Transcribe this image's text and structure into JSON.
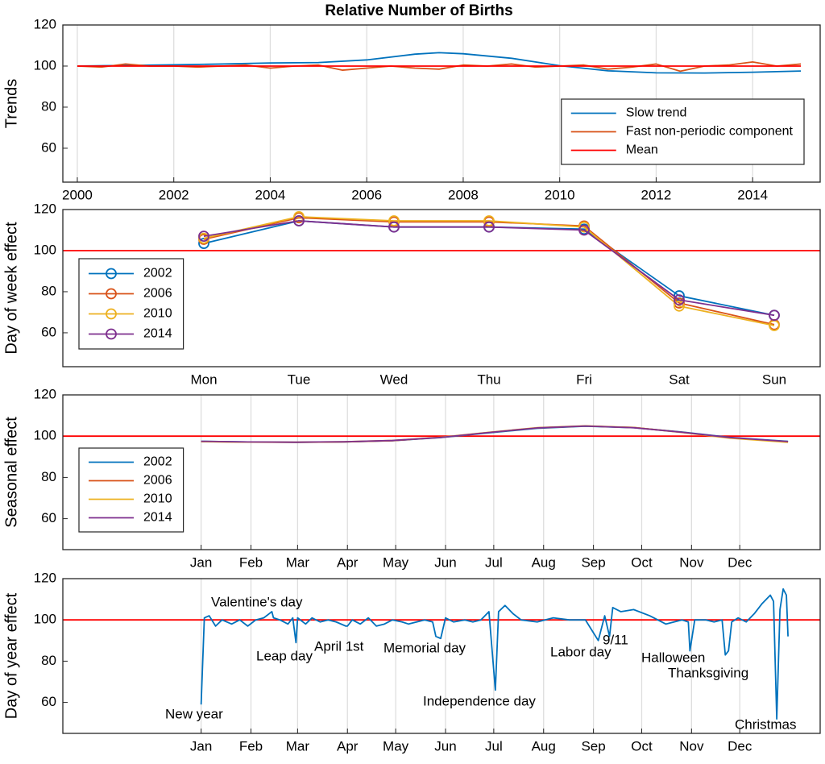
{
  "chart_data": [
    {
      "type": "line",
      "title": "Relative Number of Births",
      "ylabel": "Trends",
      "xlim": [
        1999.7,
        2015.4
      ],
      "ylim": [
        43.5,
        120
      ],
      "xticks": [
        2000,
        2002,
        2004,
        2006,
        2008,
        2010,
        2012,
        2014
      ],
      "yticks": [
        60,
        80,
        100,
        120
      ],
      "grid": true,
      "legend": "lower right",
      "series": [
        {
          "name": "Slow trend",
          "color": "#0072bd",
          "x": [
            2000,
            2001,
            2002,
            2003,
            2004,
            2005,
            2006,
            2007,
            2007.5,
            2008,
            2009,
            2010,
            2011,
            2012,
            2013,
            2014,
            2015
          ],
          "values": [
            100,
            100.3,
            100.6,
            101,
            101.5,
            101.7,
            103,
            105.8,
            106.5,
            106,
            103.8,
            100.2,
            97.7,
            96.7,
            96.6,
            97,
            97.6
          ]
        },
        {
          "name": "Fast non-periodic component",
          "color": "#d95319",
          "x": [
            2000,
            2000.5,
            2001,
            2001.5,
            2002,
            2002.5,
            2003,
            2003.5,
            2004,
            2004.5,
            2005,
            2005.5,
            2006,
            2006.5,
            2007,
            2007.5,
            2008,
            2008.5,
            2009,
            2009.5,
            2010,
            2010.5,
            2011,
            2011.5,
            2012,
            2012.5,
            2013,
            2013.5,
            2014,
            2014.5,
            2015
          ],
          "values": [
            100,
            99.5,
            101,
            100,
            100,
            99.5,
            100,
            100.5,
            99,
            100,
            100.5,
            98,
            99,
            100,
            99,
            98.5,
            100.5,
            100,
            101,
            99.5,
            100,
            100.5,
            98.5,
            99.5,
            101,
            97.5,
            100,
            100.5,
            102,
            100,
            101
          ]
        },
        {
          "name": "Mean",
          "color": "#ff0000",
          "x": [
            2000,
            2015
          ],
          "values": [
            100,
            100
          ]
        }
      ]
    },
    {
      "type": "line",
      "ylabel": "Day of week effect",
      "categories": [
        "Mon",
        "Tue",
        "Wed",
        "Thu",
        "Fri",
        "Sat",
        "Sun"
      ],
      "ylim": [
        43.5,
        120
      ],
      "yticks": [
        60,
        80,
        100,
        120
      ],
      "grid": false,
      "legend": "lower left",
      "reference_line": 100,
      "reference_color": "#ff0000",
      "markers": true,
      "series": [
        {
          "name": "2002",
          "color": "#0072bd",
          "values": [
            103.5,
            114.5,
            111.5,
            111.5,
            110.5,
            78,
            68.5
          ]
        },
        {
          "name": "2006",
          "color": "#d95319",
          "values": [
            105.5,
            116,
            114,
            114,
            112,
            74.5,
            64
          ]
        },
        {
          "name": "2010",
          "color": "#edb120",
          "values": [
            106,
            116.5,
            114.5,
            114.5,
            111.5,
            73,
            63.5
          ]
        },
        {
          "name": "2014",
          "color": "#7e2f8e",
          "values": [
            107,
            114.5,
            111.5,
            111.5,
            110,
            76,
            68.5
          ]
        }
      ]
    },
    {
      "type": "line",
      "ylabel": "Seasonal effect",
      "xlim": [
        -85,
        386
      ],
      "ylim": [
        45,
        120
      ],
      "xticks": [
        {
          "value": 1,
          "label": "Jan"
        },
        {
          "value": 32,
          "label": "Feb"
        },
        {
          "value": 61,
          "label": "Mar"
        },
        {
          "value": 92,
          "label": "Apr"
        },
        {
          "value": 122,
          "label": "May"
        },
        {
          "value": 153,
          "label": "Jun"
        },
        {
          "value": 183,
          "label": "Jul"
        },
        {
          "value": 214,
          "label": "Aug"
        },
        {
          "value": 245,
          "label": "Sep"
        },
        {
          "value": 275,
          "label": "Oct"
        },
        {
          "value": 306,
          "label": "Nov"
        },
        {
          "value": 336,
          "label": "Dec"
        }
      ],
      "yticks": [
        60,
        80,
        100,
        120
      ],
      "grid": true,
      "legend": "lower left",
      "reference_line": 100,
      "reference_color": "#ff0000",
      "x": [
        1,
        30,
        60,
        90,
        120,
        150,
        180,
        210,
        240,
        270,
        300,
        330,
        366
      ],
      "series": [
        {
          "name": "2002",
          "color": "#0072bd",
          "values": [
            97.5,
            97.2,
            97,
            97.2,
            97.8,
            99.3,
            101.6,
            103.8,
            104.8,
            104.1,
            102,
            99.4,
            97.5
          ]
        },
        {
          "name": "2006",
          "color": "#d95319",
          "values": [
            97.4,
            97.1,
            97,
            97.2,
            97.8,
            99.4,
            101.8,
            104,
            104.9,
            104.2,
            101.9,
            99.2,
            97.2
          ]
        },
        {
          "name": "2010",
          "color": "#edb120",
          "values": [
            97.3,
            97.1,
            97.1,
            97.3,
            97.9,
            99.5,
            101.9,
            104.1,
            105,
            104.2,
            101.8,
            99,
            97
          ]
        },
        {
          "name": "2014",
          "color": "#7e2f8e",
          "values": [
            97.5,
            97.2,
            97.1,
            97.3,
            97.9,
            99.4,
            101.8,
            104,
            104.9,
            104.1,
            101.9,
            99.3,
            97.4
          ]
        }
      ]
    },
    {
      "type": "line",
      "ylabel": "Day of year effect",
      "xlim": [
        -85,
        386
      ],
      "ylim": [
        45,
        120
      ],
      "xticks": [
        {
          "value": 1,
          "label": "Jan"
        },
        {
          "value": 32,
          "label": "Feb"
        },
        {
          "value": 61,
          "label": "Mar"
        },
        {
          "value": 92,
          "label": "Apr"
        },
        {
          "value": 122,
          "label": "May"
        },
        {
          "value": 153,
          "label": "Jun"
        },
        {
          "value": 183,
          "label": "Jul"
        },
        {
          "value": 214,
          "label": "Aug"
        },
        {
          "value": 245,
          "label": "Sep"
        },
        {
          "value": 275,
          "label": "Oct"
        },
        {
          "value": 306,
          "label": "Nov"
        },
        {
          "value": 336,
          "label": "Dec"
        }
      ],
      "yticks": [
        60,
        80,
        100,
        120
      ],
      "grid": true,
      "reference_line": 100,
      "reference_color": "#ff0000",
      "annotations": [
        "New year",
        "Valentine's day",
        "Leap day",
        "April 1st",
        "Memorial day",
        "Independence day",
        "Labor day",
        "9/11",
        "Halloween",
        "Thanksgiving",
        "Christmas"
      ],
      "x": [
        1,
        3,
        6,
        10,
        14,
        20,
        25,
        30,
        35,
        40,
        45,
        46,
        50,
        55,
        58,
        60,
        61,
        66,
        70,
        75,
        80,
        85,
        91,
        92,
        95,
        100,
        105,
        110,
        115,
        120,
        126,
        130,
        140,
        145,
        147,
        150,
        153,
        158,
        165,
        170,
        175,
        180,
        184,
        186,
        190,
        195,
        200,
        210,
        220,
        230,
        240,
        244,
        248,
        252,
        255,
        257,
        262,
        270,
        280,
        290,
        300,
        304,
        305,
        308,
        315,
        320,
        325,
        327,
        329,
        331,
        335,
        340,
        345,
        350,
        355,
        357,
        359,
        361,
        363,
        365,
        366
      ],
      "series": [
        {
          "name": "Day of year effect",
          "color": "#0072bd",
          "values": [
            59,
            101,
            102,
            97,
            100,
            98,
            100,
            97,
            100,
            101,
            104,
            101,
            100,
            98,
            101,
            89,
            101,
            98,
            101,
            99,
            100,
            99,
            97,
            97,
            100,
            98,
            101,
            97,
            98,
            100,
            99,
            98,
            100,
            99,
            92,
            91,
            101,
            99,
            100,
            99,
            100,
            104,
            66,
            104,
            107,
            103,
            100,
            99,
            101,
            100,
            100,
            95,
            90,
            102,
            92,
            106,
            104,
            105,
            102,
            98,
            100,
            99,
            85,
            100,
            100,
            99,
            100,
            83,
            85,
            99,
            101,
            99,
            103,
            108,
            112,
            109,
            52,
            105,
            115,
            112,
            92
          ]
        }
      ]
    }
  ]
}
